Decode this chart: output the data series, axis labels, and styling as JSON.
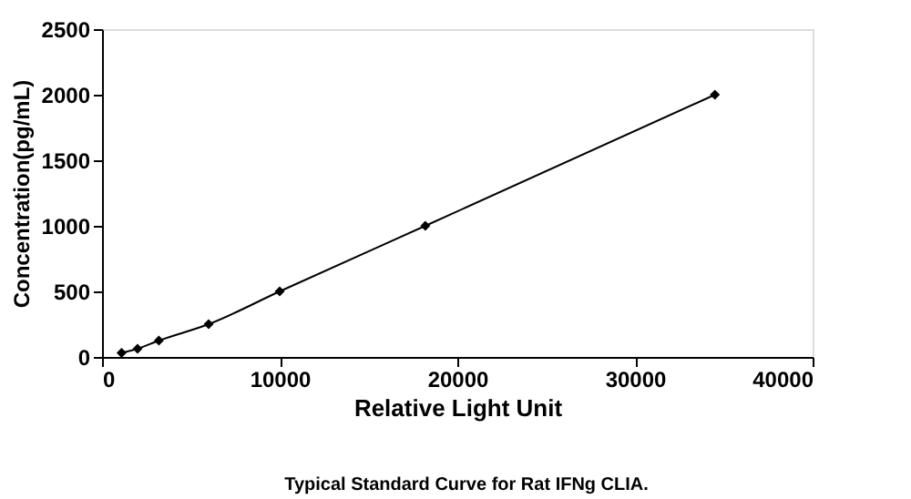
{
  "chart_data": {
    "type": "line",
    "xlabel": "Relative Light Unit",
    "ylabel": "Concentration(pg/mL)",
    "annotations": [
      "Typical Standard Curve for Rat IFNg CLIA."
    ],
    "x": [
      1100,
      2000,
      3200,
      6000,
      10000,
      18200,
      34500
    ],
    "series": [
      {
        "color": "#000000",
        "values": [
          31,
          63,
          125,
          250,
          500,
          1000,
          2000
        ]
      }
    ],
    "xlim": [
      0,
      40000
    ],
    "xticks": [
      0,
      10000,
      20000,
      30000,
      40000
    ],
    "ylim": [
      0,
      2500
    ],
    "yticks": [
      0,
      500,
      1000,
      1500,
      2000,
      2500
    ],
    "grid": false,
    "legend": false,
    "marker": "diamond",
    "line_style": "solid"
  }
}
